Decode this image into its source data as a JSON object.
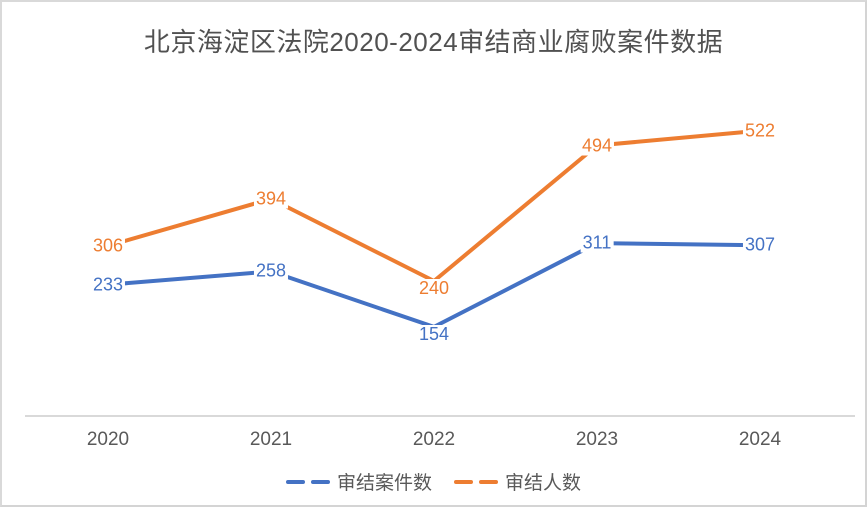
{
  "title": "北京海淀区法院2020-2024审结商业腐败案件数据",
  "colors": {
    "series_cases": "#4472C4",
    "series_people": "#ED7D31",
    "axis_line": "#D9D9D9",
    "tick_text": "#595959",
    "title_text": "#515151",
    "frame_border": "#D9D9D9",
    "background": "#FFFFFF"
  },
  "chart_data": {
    "type": "line",
    "title": "北京海淀区法院2020-2024审结商业腐败案件数据",
    "categories": [
      "2020",
      "2021",
      "2022",
      "2023",
      "2024"
    ],
    "series": [
      {
        "name": "审结案件数",
        "color": "#4472C4",
        "values": [
          233,
          258,
          154,
          311,
          307
        ],
        "label_positions": [
          "center",
          "center",
          "below",
          "center",
          "center"
        ]
      },
      {
        "name": "审结人数",
        "color": "#ED7D31",
        "values": [
          306,
          394,
          240,
          494,
          522
        ],
        "label_positions": [
          "center",
          "center",
          "below",
          "center",
          "center"
        ]
      }
    ],
    "xlabel": "",
    "ylabel": "",
    "ylim": [
      0,
      600
    ],
    "grid": false,
    "y_axis_visible": false,
    "data_labels": true,
    "legend_position": "bottom"
  },
  "legend": {
    "items": [
      {
        "label": "审结案件数",
        "color": "#4472C4"
      },
      {
        "label": "审结人数",
        "color": "#ED7D31"
      }
    ]
  }
}
